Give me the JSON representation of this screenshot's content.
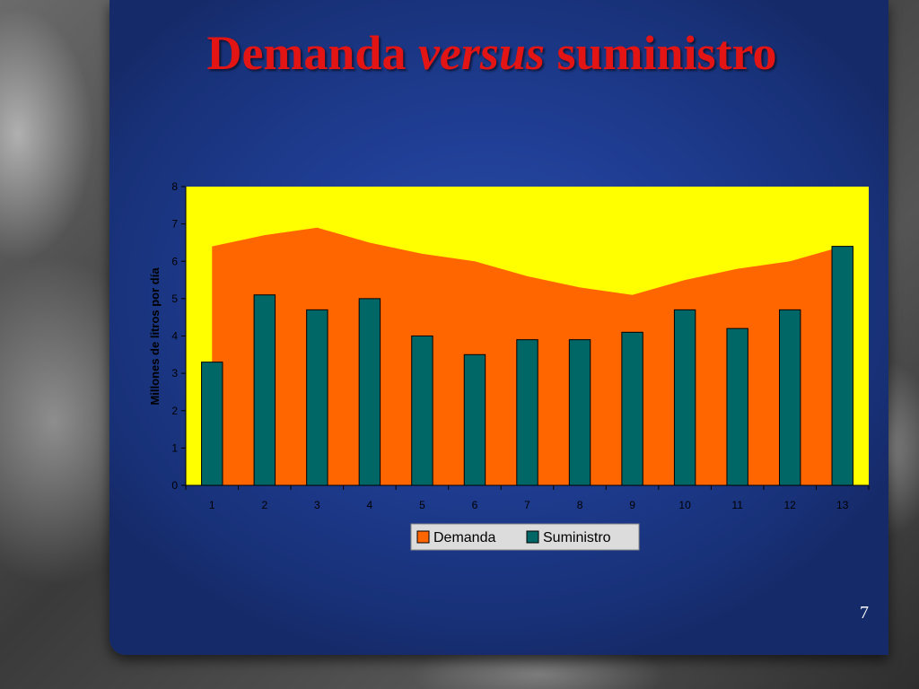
{
  "slide": {
    "title_part1": "Demanda ",
    "title_italic": "versus",
    "title_part2": " suministro",
    "page_number": "7"
  },
  "chart_data": {
    "type": "area+bar",
    "categories": [
      "1",
      "2",
      "3",
      "4",
      "5",
      "6",
      "7",
      "8",
      "9",
      "10",
      "11",
      "12",
      "13"
    ],
    "series": [
      {
        "name": "Demanda",
        "type": "area",
        "color": "#ff6600",
        "values": [
          6.4,
          6.7,
          6.9,
          6.5,
          6.2,
          6.0,
          5.6,
          5.3,
          5.1,
          5.5,
          5.8,
          6.0,
          6.4
        ]
      },
      {
        "name": "Suministro",
        "type": "bar",
        "color": "#006666",
        "values": [
          3.3,
          5.1,
          4.7,
          5.0,
          4.0,
          3.5,
          3.9,
          3.9,
          4.1,
          4.7,
          4.2,
          4.7,
          6.4
        ]
      }
    ],
    "ylabel": "Millones de litros por día",
    "xlabel": "",
    "ylim": [
      0,
      8
    ],
    "yticks": [
      0,
      1,
      2,
      3,
      4,
      5,
      6,
      7,
      8
    ],
    "plot_background": "#ffff00",
    "legend": "bottom-center",
    "grid": false
  }
}
